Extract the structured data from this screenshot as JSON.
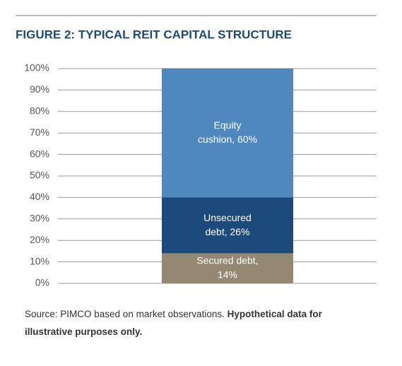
{
  "chart_data": {
    "type": "stacked-bar",
    "title": "FIGURE 2: TYPICAL REIT CAPITAL STRUCTURE",
    "categories": [
      null
    ],
    "series": [
      {
        "color": "#958872",
        "values": [
          14
        ],
        "value_labels": [
          [
            "Secured debt,",
            "14%"
          ]
        ]
      },
      {
        "color": "#1c4a7d",
        "values": [
          26
        ],
        "value_labels": [
          [
            "Unsecured",
            "debt, 26%"
          ]
        ]
      },
      {
        "color": "#4f88bf",
        "values": [
          60
        ],
        "value_labels": [
          [
            "Equity",
            "cushion, 60%"
          ]
        ]
      }
    ],
    "ylim": [
      0,
      100
    ],
    "yticks": [
      {
        "value": 0,
        "label": "0%"
      },
      {
        "value": 10,
        "label": "10%"
      },
      {
        "value": 20,
        "label": "20%"
      },
      {
        "value": 30,
        "label": "30%"
      },
      {
        "value": 40,
        "label": "40%"
      },
      {
        "value": 50,
        "label": "50%"
      },
      {
        "value": 60,
        "label": "60%"
      },
      {
        "value": 70,
        "label": "70%"
      },
      {
        "value": 80,
        "label": "80%"
      },
      {
        "value": 90,
        "label": "90%"
      },
      {
        "value": 100,
        "label": "100%"
      }
    ],
    "grid": true,
    "source": "Source: PIMCO based on market observations.",
    "note": "Hypothetical data for illustrative purposes only."
  }
}
